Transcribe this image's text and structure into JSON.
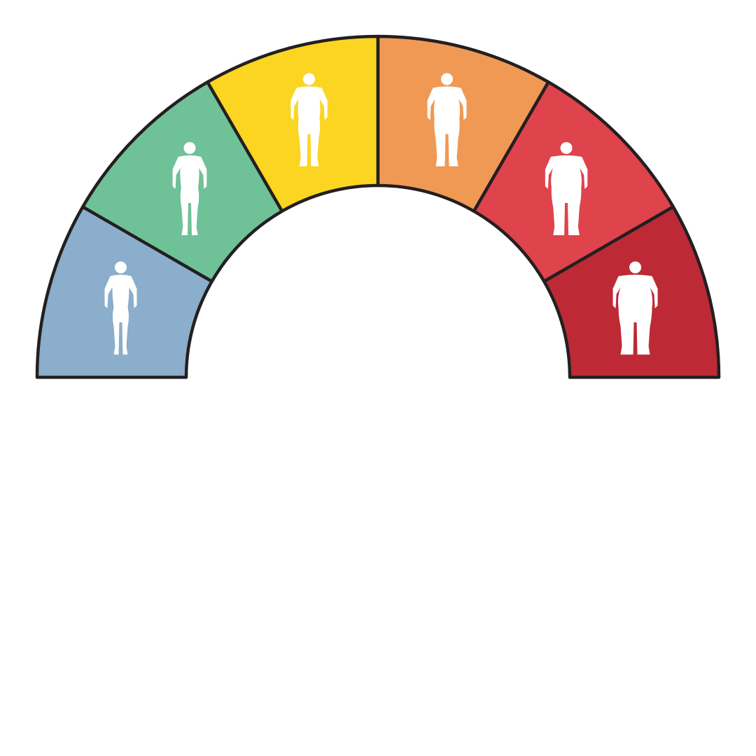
{
  "gauge": {
    "segments": [
      {
        "id": "underweight",
        "color": "#8aaecb",
        "icon": "thin-body-figure-icon",
        "build": 0.0
      },
      {
        "id": "normal",
        "color": "#6fc198",
        "icon": "slim-body-figure-icon",
        "build": 0.15
      },
      {
        "id": "overweight",
        "color": "#fbd521",
        "icon": "average-body-figure-icon",
        "build": 0.35
      },
      {
        "id": "obese-1",
        "color": "#f09954",
        "icon": "stocky-body-figure-icon",
        "build": 0.55
      },
      {
        "id": "obese-2",
        "color": "#df434b",
        "icon": "heavy-body-figure-icon",
        "build": 0.8
      },
      {
        "id": "obese-3",
        "color": "#bd2a35",
        "icon": "obese-body-figure-icon",
        "build": 1.0
      }
    ],
    "outline_color": "#231f20",
    "icon_color": "#ffffff"
  }
}
